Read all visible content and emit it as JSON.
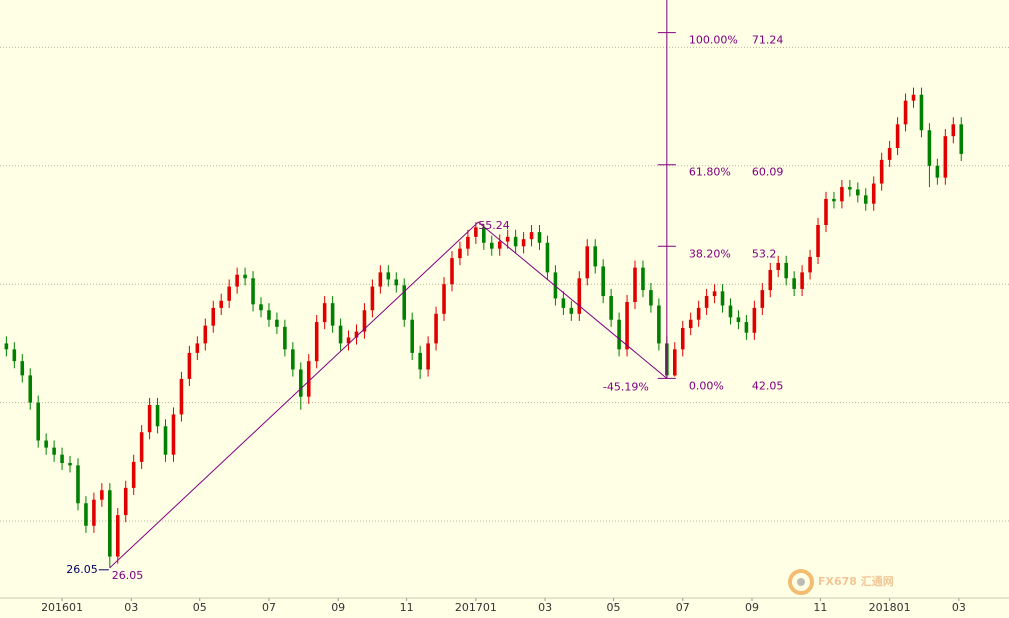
{
  "chart_data": {
    "type": "candlestick",
    "x": [
      -7,
      -6,
      -5,
      -4,
      -3,
      -2,
      -1,
      0,
      1,
      2,
      3,
      4,
      5,
      6,
      7,
      8,
      9,
      10,
      11,
      12,
      13,
      14,
      15,
      16,
      17,
      18,
      19,
      20,
      21,
      22,
      23,
      24,
      25,
      26,
      27,
      28,
      29,
      30,
      31,
      32,
      33,
      34,
      35,
      36,
      37,
      38,
      39,
      40,
      41,
      42,
      43,
      44,
      45,
      46,
      47,
      48,
      49,
      50,
      51,
      52,
      53,
      54,
      55,
      56,
      57,
      58,
      59,
      60,
      61,
      62,
      63,
      64,
      65,
      66,
      67,
      68,
      69,
      70,
      71,
      72,
      73,
      74,
      75,
      76,
      77,
      78,
      79,
      80,
      81,
      82,
      83,
      84,
      85,
      86,
      87,
      88,
      89,
      90,
      91,
      92,
      93,
      94,
      95,
      96,
      97,
      98,
      99,
      100,
      101,
      102,
      103,
      104,
      105,
      106,
      107,
      108,
      109,
      110,
      111,
      112,
      113
    ],
    "open": [
      45.0,
      44.5,
      43.5,
      42.3,
      40.0,
      36.8,
      36.2,
      35.6,
      34.9,
      34.7,
      31.5,
      29.6,
      31.8,
      32.6,
      27.0,
      30.5,
      32.8,
      35.0,
      37.5,
      39.8,
      38.0,
      35.6,
      39.0,
      42.0,
      44.2,
      45.0,
      46.5,
      48.0,
      48.6,
      49.8,
      50.8,
      50.5,
      48.3,
      47.8,
      47.0,
      46.4,
      44.5,
      42.8,
      40.5,
      43.5,
      46.8,
      48.4,
      46.5,
      45.0,
      45.5,
      46.0,
      47.8,
      49.8,
      51.0,
      50.4,
      49.9,
      47.0,
      44.2,
      42.8,
      45.0,
      47.5,
      50.0,
      52.2,
      53.0,
      54.0,
      54.8,
      53.5,
      53.0,
      53.6,
      54.0,
      53.2,
      53.8,
      54.4,
      53.5,
      51.0,
      48.8,
      48.0,
      47.5,
      50.5,
      53.2,
      51.5,
      49.0,
      47.0,
      44.5,
      48.5,
      51.4,
      49.5,
      48.2,
      45.0,
      42.3,
      44.5,
      46.3,
      47.0,
      48.0,
      49.0,
      49.4,
      48.2,
      47.2,
      46.8,
      45.9,
      48.0,
      49.5,
      51.2,
      51.8,
      50.5,
      49.6,
      51.0,
      52.3,
      55.0,
      57.2,
      57.0,
      58.2,
      58.0,
      57.5,
      56.8,
      58.5,
      60.5,
      61.5,
      63.5,
      65.5,
      66.0,
      63.0,
      60.0,
      59.0,
      62.5,
      63.5
    ],
    "high": [
      45.6,
      45.1,
      44.1,
      42.9,
      40.6,
      37.4,
      36.8,
      36.2,
      35.5,
      35.3,
      32.1,
      32.4,
      33.2,
      33.2,
      31.1,
      33.4,
      35.6,
      38.1,
      40.4,
      40.4,
      38.6,
      39.6,
      42.6,
      44.8,
      45.6,
      47.1,
      48.6,
      49.2,
      50.4,
      51.4,
      51.4,
      51.1,
      48.9,
      48.4,
      47.6,
      47.0,
      45.1,
      43.4,
      44.1,
      47.4,
      49.0,
      49.0,
      47.1,
      46.1,
      46.6,
      48.4,
      50.4,
      51.6,
      51.6,
      51.0,
      50.5,
      47.6,
      44.8,
      45.6,
      48.1,
      50.6,
      52.8,
      53.6,
      54.6,
      55.24,
      55.1,
      54.1,
      54.2,
      54.6,
      54.6,
      54.4,
      55.0,
      55.0,
      54.1,
      51.6,
      49.4,
      48.6,
      51.1,
      53.8,
      53.8,
      52.1,
      49.6,
      47.6,
      49.1,
      52.0,
      52.0,
      50.1,
      48.8,
      45.6,
      45.1,
      46.9,
      47.6,
      48.6,
      49.6,
      50.0,
      50.0,
      48.8,
      47.8,
      47.4,
      48.6,
      50.1,
      51.8,
      52.4,
      52.4,
      51.1,
      51.6,
      52.9,
      55.6,
      57.8,
      57.8,
      58.8,
      58.8,
      58.6,
      58.1,
      59.1,
      61.1,
      62.1,
      64.1,
      66.1,
      66.6,
      66.6,
      63.6,
      60.6,
      63.1,
      64.1,
      64.1
    ],
    "low": [
      43.9,
      42.9,
      41.7,
      39.4,
      36.2,
      35.6,
      35.0,
      34.3,
      34.1,
      30.9,
      29.0,
      29.0,
      31.2,
      26.05,
      26.4,
      29.9,
      32.2,
      34.4,
      36.9,
      37.4,
      35.0,
      35.0,
      38.4,
      41.4,
      43.6,
      44.4,
      45.9,
      47.4,
      48.0,
      49.2,
      49.9,
      47.7,
      47.2,
      46.4,
      45.8,
      43.9,
      42.2,
      39.4,
      39.9,
      42.9,
      46.2,
      45.9,
      44.4,
      44.4,
      44.9,
      45.4,
      47.2,
      49.2,
      49.8,
      49.3,
      46.4,
      43.6,
      42.0,
      42.2,
      44.4,
      46.9,
      49.4,
      51.6,
      52.4,
      53.4,
      52.9,
      52.4,
      52.4,
      53.0,
      52.6,
      52.6,
      53.2,
      52.9,
      50.4,
      48.2,
      47.4,
      46.9,
      46.9,
      49.9,
      50.9,
      48.4,
      46.4,
      43.9,
      43.9,
      47.9,
      48.9,
      47.6,
      44.4,
      42.05,
      42.2,
      43.9,
      45.7,
      46.4,
      47.4,
      48.4,
      47.6,
      46.6,
      46.2,
      45.3,
      45.3,
      47.4,
      48.9,
      50.6,
      49.9,
      49.0,
      49.0,
      50.4,
      51.7,
      54.4,
      56.4,
      56.4,
      57.4,
      56.9,
      56.2,
      56.2,
      57.9,
      59.9,
      60.9,
      62.9,
      64.9,
      62.4,
      58.2,
      58.4,
      58.4,
      61.9,
      60.4
    ],
    "close": [
      44.5,
      43.5,
      42.3,
      40.0,
      36.8,
      36.2,
      35.6,
      34.9,
      34.7,
      31.5,
      29.6,
      31.8,
      32.6,
      27.0,
      30.5,
      32.8,
      35.0,
      37.5,
      39.8,
      38.0,
      35.6,
      39.0,
      42.0,
      44.2,
      45.0,
      46.5,
      48.0,
      48.6,
      49.8,
      50.8,
      50.5,
      48.3,
      47.8,
      47.0,
      46.4,
      44.5,
      42.8,
      40.5,
      43.5,
      46.8,
      48.4,
      46.5,
      45.0,
      45.5,
      46.0,
      47.8,
      49.8,
      51.0,
      50.4,
      49.9,
      47.0,
      44.2,
      42.8,
      45.0,
      47.5,
      50.0,
      52.2,
      53.0,
      54.0,
      54.8,
      53.5,
      53.0,
      53.6,
      54.0,
      53.2,
      53.8,
      54.4,
      53.5,
      51.0,
      48.8,
      48.0,
      47.5,
      50.5,
      53.2,
      51.5,
      49.0,
      47.0,
      44.5,
      48.5,
      51.4,
      49.5,
      48.2,
      45.0,
      42.3,
      44.5,
      46.3,
      47.0,
      48.0,
      49.0,
      49.4,
      48.2,
      47.2,
      46.8,
      45.9,
      48.0,
      49.5,
      51.2,
      51.8,
      50.5,
      49.6,
      51.0,
      52.3,
      55.0,
      57.2,
      57.0,
      58.2,
      58.0,
      57.5,
      56.8,
      58.5,
      60.5,
      61.5,
      63.5,
      65.5,
      66.0,
      63.0,
      60.0,
      59.0,
      62.5,
      63.5,
      61.0
    ],
    "up_color": "#e00000",
    "down_color": "#008000",
    "xlim": [
      -7.8,
      119
    ],
    "ylim": [
      23.5,
      74
    ],
    "xticks": [
      {
        "value": 0,
        "label": "201601"
      },
      {
        "value": 8.7,
        "label": "03"
      },
      {
        "value": 17.3,
        "label": "05"
      },
      {
        "value": 26,
        "label": "07"
      },
      {
        "value": 34.7,
        "label": "09"
      },
      {
        "value": 43.3,
        "label": "11"
      },
      {
        "value": 52,
        "label": "201701"
      },
      {
        "value": 60.7,
        "label": "03"
      },
      {
        "value": 69.3,
        "label": "05"
      },
      {
        "value": 78,
        "label": "07"
      },
      {
        "value": 86.7,
        "label": "09"
      },
      {
        "value": 95.3,
        "label": "11"
      },
      {
        "value": 104,
        "label": "201801"
      },
      {
        "value": 112.7,
        "label": "03"
      }
    ],
    "grid_lines": [
      30,
      40,
      50,
      60,
      70
    ],
    "fib_levels": [
      {
        "percent": "100.00%",
        "value": 71.24
      },
      {
        "percent": "61.80%",
        "value": 60.09
      },
      {
        "percent": "38.20%",
        "value": 53.2
      },
      {
        "percent": "0.00%",
        "value": 42.05
      }
    ],
    "fib_x": 76,
    "trend_points": [
      {
        "x": 6,
        "value": 26.05
      },
      {
        "x": 52.3,
        "value": 55.24
      },
      {
        "x": 76,
        "value": 42.05
      }
    ],
    "trend_change_label": "-45.19%",
    "watermark": "FX678 汇通网"
  }
}
